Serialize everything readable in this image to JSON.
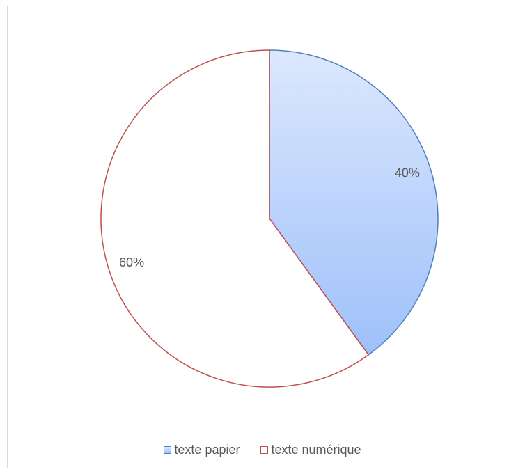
{
  "chart_data": {
    "type": "pie",
    "categories": [
      "texte papier",
      "texte numérique"
    ],
    "values": [
      40,
      60
    ],
    "data_labels": [
      "40%",
      "60%"
    ],
    "start_angle_deg": 0,
    "direction": "clockwise",
    "legend_position": "bottom",
    "colors": {
      "texte papier": {
        "fill_top": "#dce8fd",
        "fill_bottom": "#9ec0fa",
        "stroke": "#4f81bd"
      },
      "texte numérique": {
        "fill": "#ffffff",
        "stroke": "#c0504d"
      }
    }
  }
}
